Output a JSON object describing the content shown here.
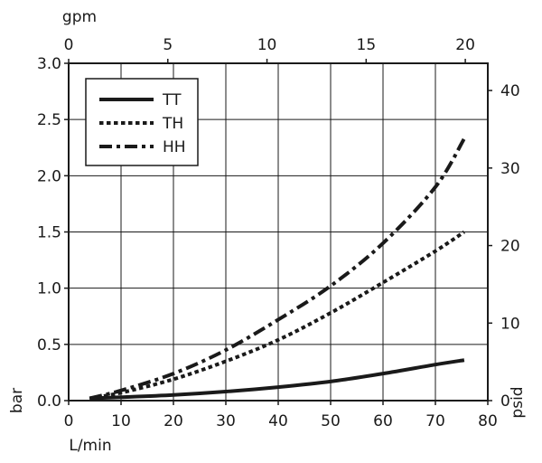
{
  "chart_data": {
    "type": "line",
    "title": "",
    "axes": {
      "bottom": {
        "label": "L/min",
        "range": [
          0,
          80
        ],
        "ticks": [
          0,
          10,
          20,
          30,
          40,
          50,
          60,
          70,
          80
        ],
        "tick_labels": [
          "0",
          "10",
          "20",
          "30",
          "40",
          "50",
          "60",
          "70",
          "80"
        ]
      },
      "top": {
        "label": "gpm",
        "range": [
          0,
          21.134
        ],
        "ticks": [
          0,
          5,
          10,
          15,
          20
        ],
        "tick_labels": [
          "0",
          "5",
          "10",
          "15",
          "20"
        ]
      },
      "left": {
        "label": "bar",
        "range": [
          0,
          3.0
        ],
        "ticks": [
          0,
          0.5,
          1.0,
          1.5,
          2.0,
          2.5,
          3.0
        ],
        "tick_labels": [
          "0.0",
          "0.5",
          "1.0",
          "1.5",
          "2.0",
          "2.5",
          "3.0"
        ]
      },
      "right": {
        "label": "psid",
        "range": [
          0,
          43.51
        ],
        "ticks": [
          0,
          10,
          20,
          30,
          40
        ],
        "tick_labels": [
          "0",
          "10",
          "20",
          "30",
          "40"
        ]
      }
    },
    "grid": true,
    "vertical_grid_ticks": [
      10,
      20,
      30,
      40,
      50,
      60,
      70
    ],
    "horizontal_grid_ticks": [
      0.5,
      1.0,
      1.5,
      2.0,
      2.5
    ],
    "legend": {
      "placement": "top-left",
      "entries": [
        "TT",
        "TH",
        "HH"
      ]
    },
    "series": [
      {
        "name": "TT",
        "style": "solid",
        "color": "#1a1a1a",
        "x": [
          4,
          10,
          20,
          30,
          40,
          50,
          60,
          70,
          75.5
        ],
        "y": [
          0.02,
          0.03,
          0.05,
          0.08,
          0.12,
          0.17,
          0.24,
          0.32,
          0.36
        ]
      },
      {
        "name": "TH",
        "style": "dotted",
        "color": "#1a1a1a",
        "x": [
          4,
          10,
          20,
          30,
          40,
          50,
          60,
          70,
          75.5
        ],
        "y": [
          0.02,
          0.07,
          0.19,
          0.35,
          0.54,
          0.78,
          1.05,
          1.33,
          1.5
        ]
      },
      {
        "name": "HH",
        "style": "dash-dot",
        "color": "#1a1a1a",
        "x": [
          4,
          10,
          20,
          30,
          40,
          50,
          60,
          70,
          75.5
        ],
        "y": [
          0.02,
          0.09,
          0.24,
          0.45,
          0.72,
          1.02,
          1.4,
          1.9,
          2.33
        ]
      }
    ]
  }
}
